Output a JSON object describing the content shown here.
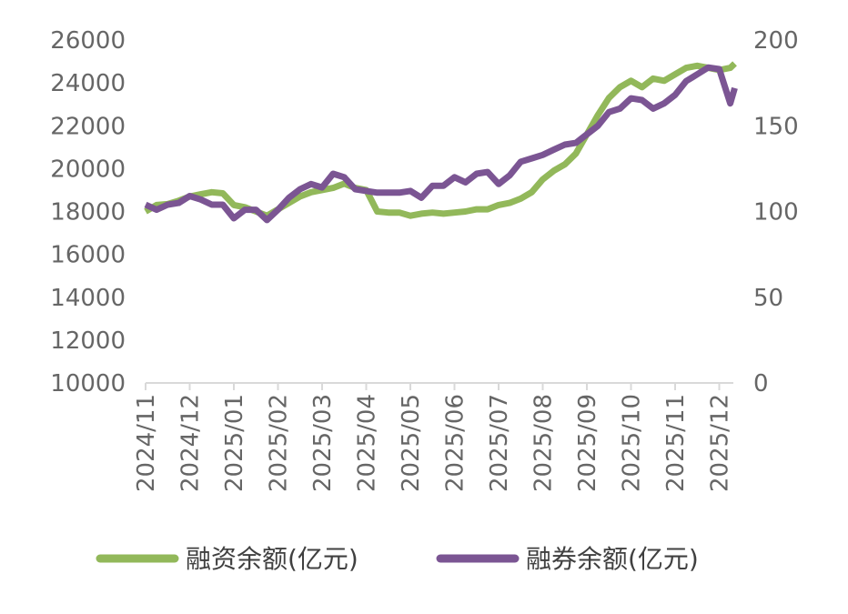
{
  "chart_data": {
    "type": "line",
    "title": "",
    "xlabel": "",
    "ylabel_left": "",
    "ylabel_right": "",
    "x_ticks": [
      "2024/11",
      "2024/12",
      "2025/01",
      "2025/02",
      "2025/03",
      "2025/04",
      "2025/05",
      "2025/06",
      "2025/07",
      "2025/08",
      "2025/09",
      "2025/10",
      "2025/11",
      "2025/12"
    ],
    "y_left": {
      "min": 10000,
      "max": 26000,
      "ticks": [
        "10000",
        "12000",
        "14000",
        "16000",
        "18000",
        "20000",
        "22000",
        "24000",
        "26000"
      ]
    },
    "y_right": {
      "min": 0,
      "max": 200,
      "ticks": [
        "0",
        "50",
        "100",
        "150",
        "200"
      ]
    },
    "grid": false,
    "legend_position": "bottom",
    "series": [
      {
        "name": "融资余额(亿元)",
        "axis": "left",
        "color": "#92B85A",
        "x": [
          0,
          0.25,
          0.5,
          0.75,
          1,
          1.25,
          1.5,
          1.75,
          2,
          2.25,
          2.5,
          2.75,
          3,
          3.25,
          3.5,
          3.75,
          4,
          4.25,
          4.5,
          4.75,
          5,
          5.25,
          5.5,
          5.75,
          6,
          6.25,
          6.5,
          6.75,
          7,
          7.25,
          7.5,
          7.75,
          8,
          8.25,
          8.5,
          8.75,
          9,
          9.25,
          9.5,
          9.75,
          10,
          10.25,
          10.5,
          10.75,
          11,
          11.25,
          11.5,
          11.75,
          12,
          12.25,
          12.5,
          12.75,
          13,
          13.25,
          13.35
        ],
        "values": [
          18000,
          18300,
          18350,
          18500,
          18700,
          18800,
          18900,
          18850,
          18300,
          18200,
          18000,
          17800,
          18100,
          18400,
          18700,
          18900,
          19000,
          19100,
          19300,
          19100,
          19000,
          18000,
          17950,
          17950,
          17800,
          17900,
          17950,
          17900,
          17950,
          18000,
          18100,
          18100,
          18300,
          18400,
          18600,
          18900,
          19500,
          19900,
          20200,
          20700,
          21600,
          22500,
          23300,
          23800,
          24100,
          23800,
          24200,
          24100,
          24400,
          24700,
          24800,
          24700,
          24600,
          24700,
          24900
        ]
      },
      {
        "name": "融券余额(亿元)",
        "axis": "right",
        "color": "#7B5593",
        "x": [
          0,
          0.25,
          0.5,
          0.75,
          1,
          1.25,
          1.5,
          1.75,
          2,
          2.25,
          2.5,
          2.75,
          3,
          3.25,
          3.5,
          3.75,
          4,
          4.25,
          4.5,
          4.75,
          5,
          5.25,
          5.5,
          5.75,
          6,
          6.25,
          6.5,
          6.75,
          7,
          7.25,
          7.5,
          7.75,
          8,
          8.25,
          8.5,
          8.75,
          9,
          9.25,
          9.5,
          9.75,
          10,
          10.25,
          10.5,
          10.75,
          11,
          11.25,
          11.5,
          11.75,
          12,
          12.25,
          12.5,
          12.75,
          13,
          13.25,
          13.35
        ],
        "values": [
          104,
          101,
          104,
          105,
          109,
          107,
          104,
          104,
          96,
          101,
          101,
          95,
          101,
          108,
          113,
          116,
          114,
          122,
          120,
          113,
          112,
          111,
          111,
          111,
          112,
          108,
          115,
          115,
          120,
          117,
          122,
          123,
          116,
          121,
          129,
          131,
          133,
          136,
          139,
          140,
          145,
          150,
          158,
          160,
          166,
          165,
          160,
          163,
          168,
          176,
          180,
          184,
          183,
          163,
          172
        ]
      }
    ]
  }
}
